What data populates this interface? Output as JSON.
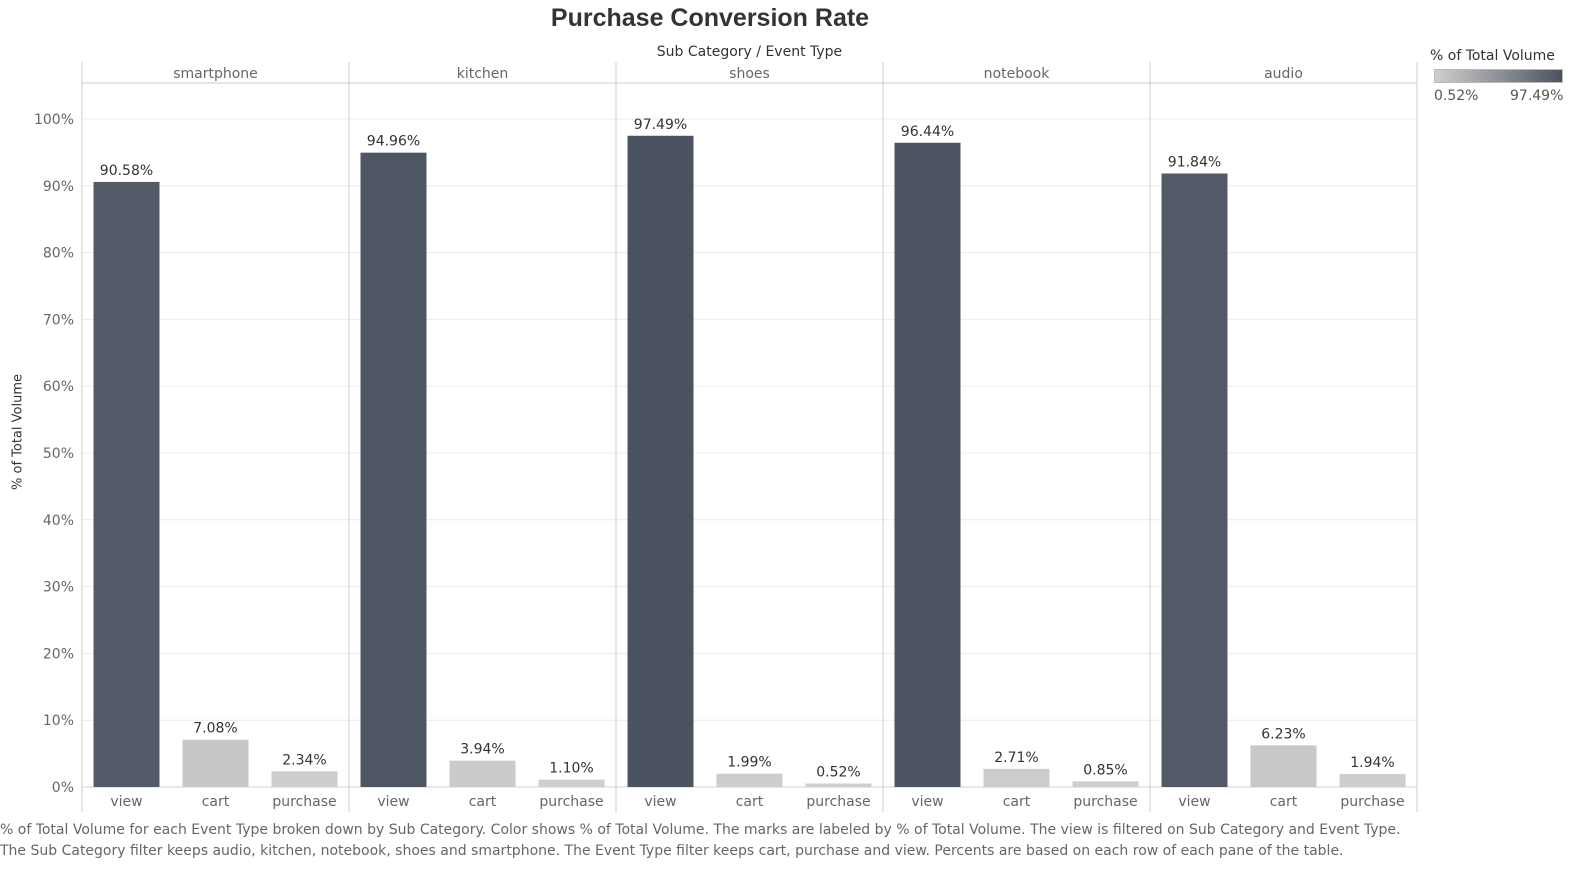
{
  "chart_data": {
    "type": "bar",
    "title": "Purchase Conversion Rate",
    "column_header_title": "Sub Category / Event Type",
    "ylabel": "% of Total Volume",
    "ylim": [
      0,
      100
    ],
    "yticks": [
      "0%",
      "10%",
      "20%",
      "30%",
      "40%",
      "50%",
      "60%",
      "70%",
      "80%",
      "90%",
      "100%"
    ],
    "grid": true,
    "event_types": [
      "view",
      "cart",
      "purchase"
    ],
    "panels": [
      {
        "category": "smartphone",
        "values": [
          90.58,
          7.08,
          2.34
        ],
        "labels": [
          "90.58%",
          "7.08%",
          "2.34%"
        ]
      },
      {
        "category": "kitchen",
        "values": [
          94.96,
          3.94,
          1.1
        ],
        "labels": [
          "94.96%",
          "3.94%",
          "1.10%"
        ]
      },
      {
        "category": "shoes",
        "values": [
          97.49,
          1.99,
          0.52
        ],
        "labels": [
          "97.49%",
          "1.99%",
          "0.52%"
        ]
      },
      {
        "category": "notebook",
        "values": [
          96.44,
          2.71,
          0.85
        ],
        "labels": [
          "96.44%",
          "2.71%",
          "0.85%"
        ]
      },
      {
        "category": "audio",
        "values": [
          91.84,
          6.23,
          1.94
        ],
        "labels": [
          "91.84%",
          "6.23%",
          "1.94%"
        ]
      }
    ],
    "color_legend": {
      "title": "% of Total Volume",
      "min_label": "0.52%",
      "max_label": "97.49%",
      "min_value": 0.52,
      "max_value": 97.49,
      "low_color": "#cfcfcf",
      "high_color": "#4b5260",
      "placement": "top-right"
    },
    "caption": "% of Total Volume for each Event Type broken down by Sub Category.  Color shows % of Total Volume.  The marks are labeled by % of Total Volume. The view is filtered on Sub Category and Event Type. The Sub Category filter keeps audio, kitchen, notebook, shoes and smartphone. The Event Type filter keeps cart, purchase and view. Percents are based on each row of each pane of the table."
  }
}
